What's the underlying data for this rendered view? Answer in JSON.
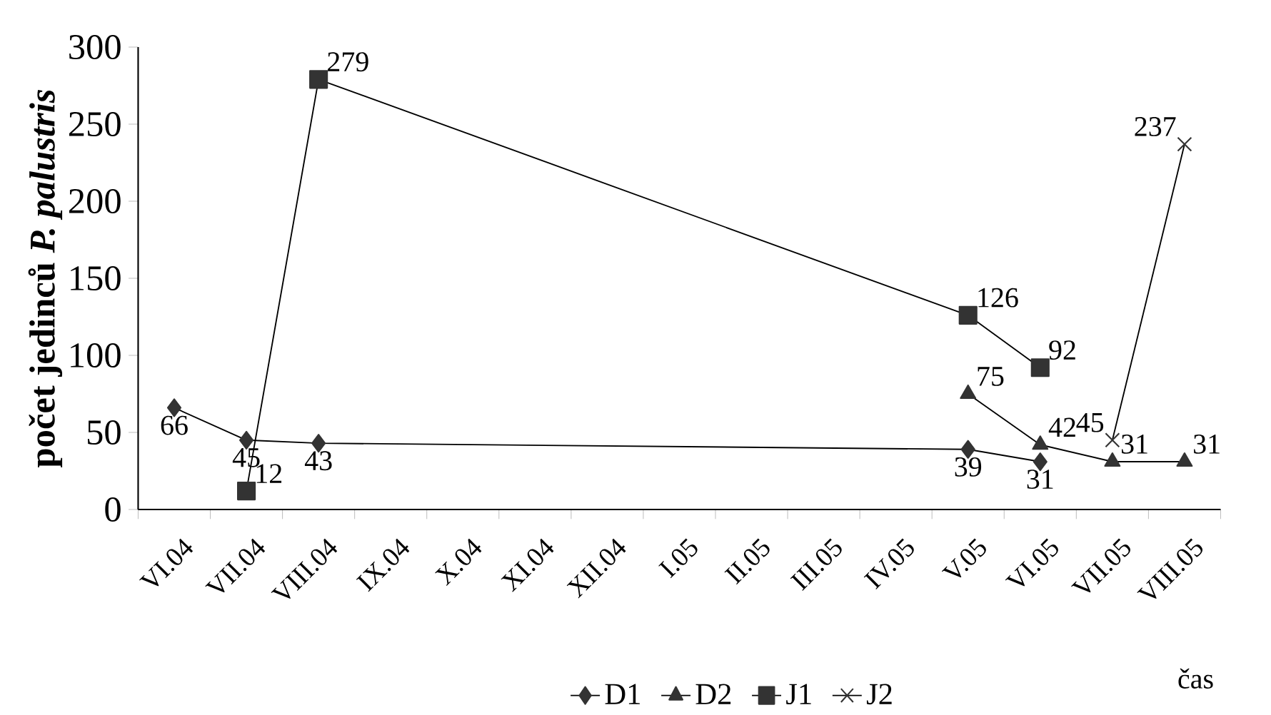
{
  "chart_data": {
    "type": "line",
    "ylabel": "počet jedinců *P. palustris*",
    "xlabel": "čas",
    "categories": [
      "VI.04",
      "VII.04",
      "VIII.04",
      "IX.04",
      "X.04",
      "XI.04",
      "XII.04",
      "I.05",
      "II.05",
      "III.05",
      "IV.05",
      "V.05",
      "VI.05",
      "VII.05",
      "VIII.05"
    ],
    "series": [
      {
        "name": "D1",
        "color": "#333333",
        "marker": "diamond",
        "values": [
          66,
          45,
          43,
          null,
          null,
          null,
          null,
          null,
          null,
          null,
          null,
          39,
          31,
          null,
          null
        ]
      },
      {
        "name": "D2",
        "color": "#333333",
        "marker": "triangle",
        "values": [
          null,
          null,
          null,
          null,
          null,
          null,
          null,
          null,
          null,
          null,
          null,
          75,
          42,
          31,
          31
        ]
      },
      {
        "name": "J1",
        "color": "#333333",
        "marker": "square",
        "values": [
          null,
          12,
          279,
          null,
          null,
          null,
          null,
          null,
          null,
          null,
          null,
          126,
          92,
          null,
          null
        ]
      },
      {
        "name": "J2",
        "color": "#333333",
        "marker": "cross",
        "values": [
          null,
          null,
          null,
          null,
          null,
          null,
          null,
          null,
          null,
          null,
          null,
          null,
          null,
          45,
          237
        ]
      }
    ],
    "ylim": [
      0,
      300
    ],
    "yticks": [
      0,
      50,
      100,
      150,
      200,
      250,
      300
    ],
    "data_labels": true,
    "legend": "bottom",
    "grid": false
  }
}
